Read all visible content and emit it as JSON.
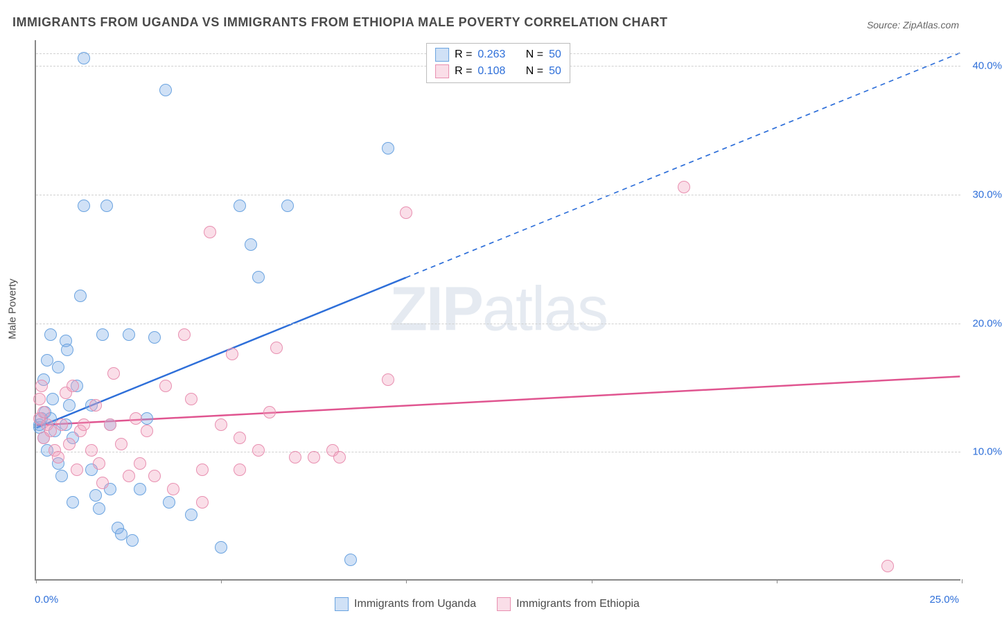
{
  "title": "IMMIGRANTS FROM UGANDA VS IMMIGRANTS FROM ETHIOPIA MALE POVERTY CORRELATION CHART",
  "source": "Source: ZipAtlas.com",
  "watermark": "ZIPatlas",
  "y_axis_label": "Male Poverty",
  "chart": {
    "type": "scatter",
    "xlim": [
      0,
      25
    ],
    "ylim": [
      0,
      42
    ],
    "x_ticks": [
      0,
      5,
      10,
      15,
      20,
      25
    ],
    "y_ticks": [
      10,
      20,
      30,
      40
    ],
    "x_start_label": "0.0%",
    "x_end_label": "25.0%",
    "y_tick_labels": [
      "10.0%",
      "20.0%",
      "30.0%",
      "40.0%"
    ],
    "grid_color": "#d0d0d0",
    "background_color": "#ffffff",
    "marker_radius": 9,
    "marker_stroke_width": 1.2,
    "trend_line_width": 2.5,
    "series": [
      {
        "name": "Immigrants from Uganda",
        "legend_label": "Immigrants from Uganda",
        "fill": "rgba(120,170,230,0.35)",
        "stroke": "#6aa3e0",
        "line_color": "#2e6fd9",
        "r_value": "0.263",
        "n_value": "50",
        "trend": {
          "x1": 0,
          "y1": 11.8,
          "x2_solid": 10,
          "y2_solid": 23.5,
          "x2": 25,
          "y2": 41.0
        },
        "points": [
          [
            0.1,
            11.8
          ],
          [
            0.1,
            12.0
          ],
          [
            0.15,
            12.5
          ],
          [
            0.2,
            11.0
          ],
          [
            0.2,
            15.5
          ],
          [
            0.25,
            13.0
          ],
          [
            0.3,
            10.0
          ],
          [
            0.3,
            17.0
          ],
          [
            0.4,
            19.0
          ],
          [
            0.45,
            14.0
          ],
          [
            0.5,
            11.5
          ],
          [
            0.6,
            16.5
          ],
          [
            0.6,
            9.0
          ],
          [
            0.7,
            8.0
          ],
          [
            0.8,
            18.5
          ],
          [
            0.85,
            17.8
          ],
          [
            0.9,
            13.5
          ],
          [
            1.0,
            11.0
          ],
          [
            1.0,
            6.0
          ],
          [
            1.1,
            15.0
          ],
          [
            1.2,
            22.0
          ],
          [
            1.3,
            29.0
          ],
          [
            1.3,
            40.5
          ],
          [
            1.5,
            8.5
          ],
          [
            1.5,
            13.5
          ],
          [
            1.6,
            6.5
          ],
          [
            1.7,
            5.5
          ],
          [
            1.8,
            19.0
          ],
          [
            1.9,
            29.0
          ],
          [
            2.0,
            12.0
          ],
          [
            2.0,
            7.0
          ],
          [
            2.2,
            4.0
          ],
          [
            2.3,
            3.5
          ],
          [
            2.5,
            19.0
          ],
          [
            2.6,
            3.0
          ],
          [
            2.8,
            7.0
          ],
          [
            3.0,
            12.5
          ],
          [
            3.2,
            18.8
          ],
          [
            3.5,
            38.0
          ],
          [
            3.6,
            6.0
          ],
          [
            4.2,
            5.0
          ],
          [
            5.0,
            2.5
          ],
          [
            5.5,
            29.0
          ],
          [
            5.8,
            26.0
          ],
          [
            6.0,
            23.5
          ],
          [
            6.8,
            29.0
          ],
          [
            8.5,
            1.5
          ],
          [
            9.5,
            33.5
          ],
          [
            0.8,
            12.0
          ],
          [
            0.4,
            12.5
          ]
        ]
      },
      {
        "name": "Immigrants from Ethiopia",
        "legend_label": "Immigrants from Ethiopia",
        "fill": "rgba(240,160,190,0.35)",
        "stroke": "#e88fb0",
        "line_color": "#e05590",
        "r_value": "0.108",
        "n_value": "50",
        "trend": {
          "x1": 0,
          "y1": 12.0,
          "x2_solid": 25,
          "y2_solid": 15.8,
          "x2": 25,
          "y2": 15.8
        },
        "points": [
          [
            0.1,
            12.5
          ],
          [
            0.1,
            14.0
          ],
          [
            0.15,
            15.0
          ],
          [
            0.2,
            11.0
          ],
          [
            0.2,
            13.0
          ],
          [
            0.3,
            12.0
          ],
          [
            0.4,
            11.5
          ],
          [
            0.5,
            10.0
          ],
          [
            0.6,
            9.5
          ],
          [
            0.7,
            12.0
          ],
          [
            0.8,
            14.5
          ],
          [
            0.9,
            10.5
          ],
          [
            1.0,
            15.0
          ],
          [
            1.1,
            8.5
          ],
          [
            1.2,
            11.5
          ],
          [
            1.3,
            12.0
          ],
          [
            1.5,
            10.0
          ],
          [
            1.6,
            13.5
          ],
          [
            1.7,
            9.0
          ],
          [
            1.8,
            7.5
          ],
          [
            2.0,
            12.0
          ],
          [
            2.1,
            16.0
          ],
          [
            2.3,
            10.5
          ],
          [
            2.5,
            8.0
          ],
          [
            2.7,
            12.5
          ],
          [
            2.8,
            9.0
          ],
          [
            3.0,
            11.5
          ],
          [
            3.2,
            8.0
          ],
          [
            3.5,
            15.0
          ],
          [
            3.7,
            7.0
          ],
          [
            4.0,
            19.0
          ],
          [
            4.2,
            14.0
          ],
          [
            4.5,
            8.5
          ],
          [
            4.7,
            27.0
          ],
          [
            5.0,
            12.0
          ],
          [
            5.3,
            17.5
          ],
          [
            5.5,
            11.0
          ],
          [
            6.0,
            10.0
          ],
          [
            6.3,
            13.0
          ],
          [
            6.5,
            18.0
          ],
          [
            7.0,
            9.5
          ],
          [
            7.5,
            9.5
          ],
          [
            8.0,
            10.0
          ],
          [
            8.2,
            9.5
          ],
          [
            9.5,
            15.5
          ],
          [
            10.0,
            28.5
          ],
          [
            17.5,
            30.5
          ],
          [
            23.0,
            1.0
          ],
          [
            4.5,
            6.0
          ],
          [
            5.5,
            8.5
          ]
        ]
      }
    ]
  },
  "legend_top": {
    "r_label": "R =",
    "n_label": "N ="
  }
}
